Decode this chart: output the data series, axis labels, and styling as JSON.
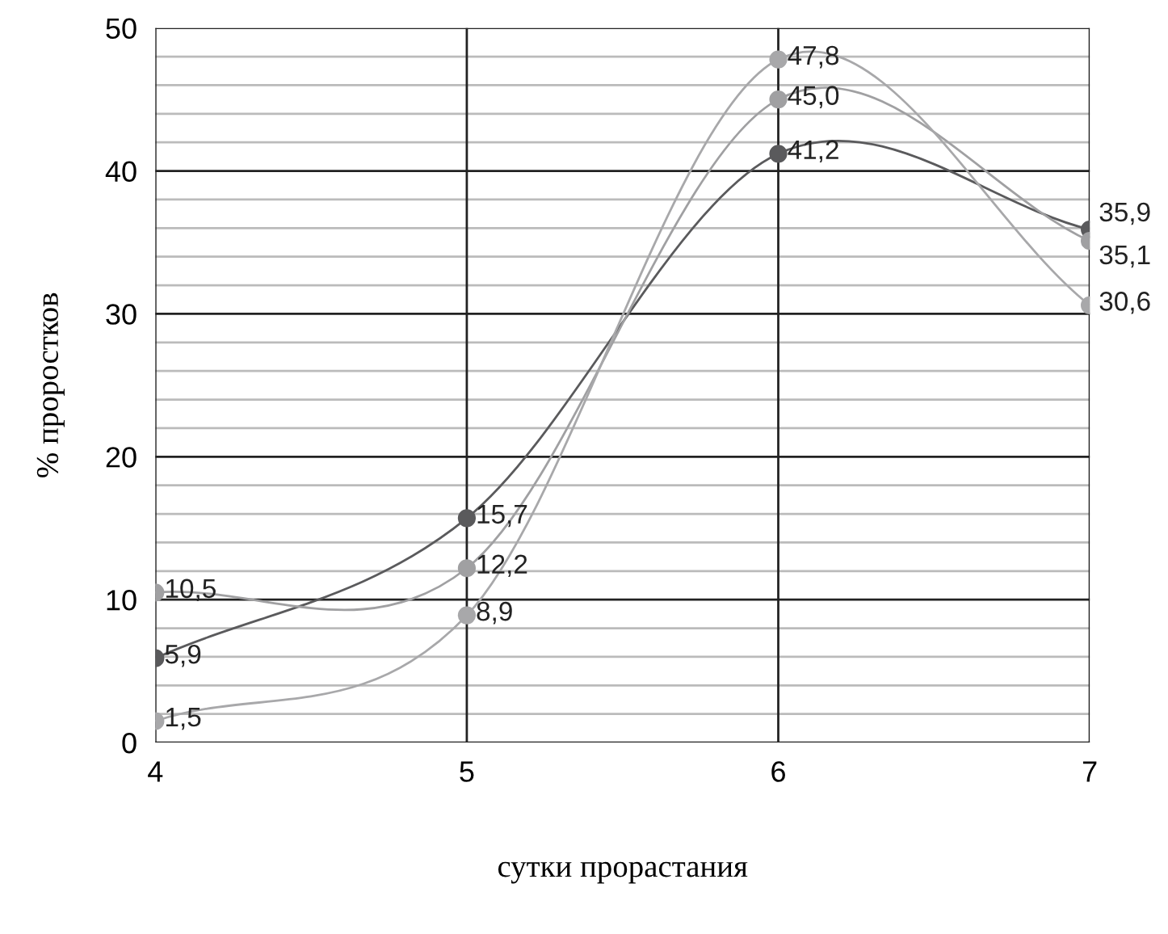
{
  "chart_data": {
    "type": "line",
    "xlabel": "сутки прорастания",
    "ylabel": "% проростков",
    "x": [
      4,
      5,
      6,
      7
    ],
    "xlim": [
      4,
      7
    ],
    "xticks": [
      4,
      5,
      6,
      7
    ],
    "ylim": [
      0,
      50
    ],
    "yticks": [
      0,
      {
        "value": 2,
        "label": null
      },
      {
        "value": 4,
        "label": null
      },
      {
        "value": 6,
        "label": null
      },
      {
        "value": 8,
        "label": null
      },
      10,
      {
        "value": 12,
        "label": null
      },
      {
        "value": 14,
        "label": null
      },
      {
        "value": 16,
        "label": null
      },
      {
        "value": 18,
        "label": null
      },
      20,
      {
        "value": 22,
        "label": null
      },
      {
        "value": 24,
        "label": null
      },
      {
        "value": 26,
        "label": null
      },
      {
        "value": 28,
        "label": null
      },
      30,
      {
        "value": 32,
        "label": null
      },
      {
        "value": 34,
        "label": null
      },
      {
        "value": 36,
        "label": null
      },
      {
        "value": 38,
        "label": null
      },
      40,
      {
        "value": 42,
        "label": null
      },
      {
        "value": 44,
        "label": null
      },
      {
        "value": 46,
        "label": null
      },
      {
        "value": 48,
        "label": null
      },
      50
    ],
    "grid": true,
    "marker": "circle",
    "line_style": "solid",
    "series": [
      {
        "color": "#5a5a5c",
        "values": [
          5.9,
          15.7,
          41.2,
          35.9
        ],
        "value_labels": [
          "5,9",
          "15,7",
          "41,2",
          "35,9"
        ]
      },
      {
        "color": "#a0a0a2",
        "values": [
          10.5,
          12.2,
          45.0,
          35.1
        ],
        "value_labels": [
          "10,5",
          "12,2",
          "45,0",
          "35,1"
        ]
      },
      {
        "color": "#a8a8aa",
        "values": [
          1.5,
          8.9,
          47.8,
          30.6
        ],
        "value_labels": [
          "1,5",
          "8,9",
          "47,8",
          "30,6"
        ]
      }
    ]
  }
}
